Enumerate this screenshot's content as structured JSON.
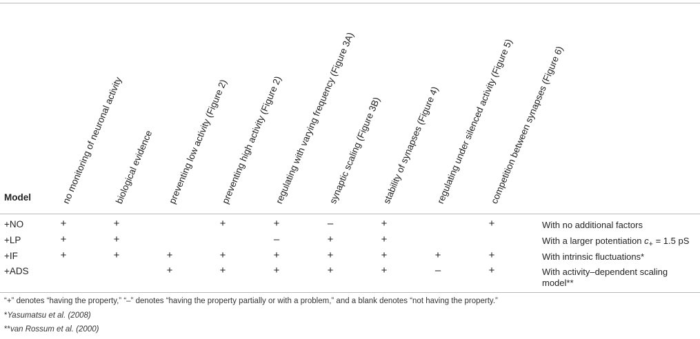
{
  "table": {
    "model_header": "Model",
    "columns": [
      "no monitoring of neuronal activity",
      "biological evidence",
      "preventing low activity (Figure 2)",
      "preventing high activity (Figure 2)",
      "regulating with varying frequency (Figure 3A)",
      "synaptic scaling (Figure 3B)",
      "stability of synapses (Figure 4)",
      "regulating under silenced activity (Figure 5)",
      "competition between synapses (Figure 6)"
    ],
    "rows": [
      {
        "model": "+NO",
        "cells": [
          "+",
          "+",
          "",
          "+",
          "+",
          "–",
          "+",
          "",
          "+"
        ],
        "description": "With no additional factors"
      },
      {
        "model": "+LP",
        "cells": [
          "+",
          "+",
          "",
          "",
          "–",
          "+",
          "+",
          "",
          ""
        ],
        "description_prefix": "With a larger potentiation ",
        "description_var": "c",
        "description_sub": "+",
        "description_suffix": " = 1.5 pS"
      },
      {
        "model": "+IF",
        "cells": [
          "+",
          "+",
          "+",
          "+",
          "+",
          "+",
          "+",
          "+",
          "+"
        ],
        "description": "With intrinsic fluctuations*"
      },
      {
        "model": "+ADS",
        "cells": [
          "",
          "",
          "+",
          "+",
          "+",
          "+",
          "+",
          "–",
          "+"
        ],
        "description": "With activity–dependent scaling model**"
      }
    ]
  },
  "footnotes": {
    "legend": "“+” denotes “having the property,” “–” denotes “having the property partially or with a problem,” and a blank denotes “not having the property.”",
    "ref1_mark": "*",
    "ref1_text": "Yasumatsu et al. (2008)",
    "ref2_mark": "**",
    "ref2_text": "van Rossum et al. (2000)"
  }
}
